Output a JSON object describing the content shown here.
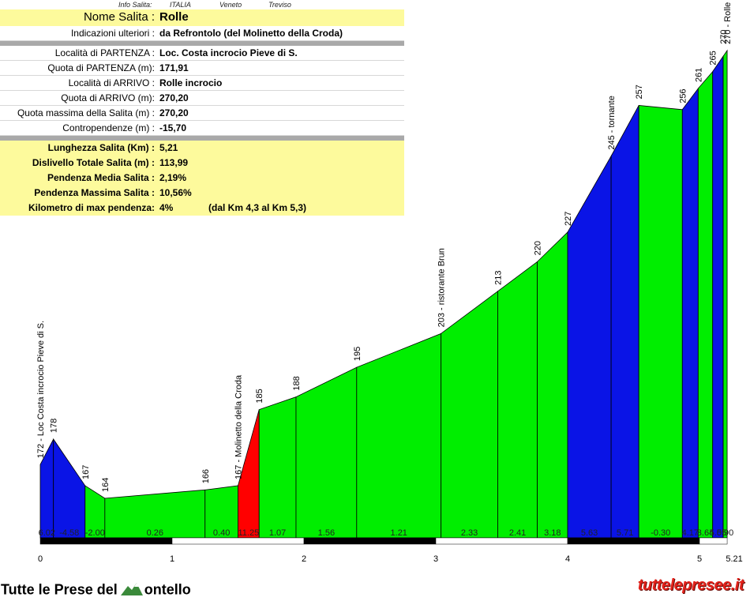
{
  "info": {
    "header": {
      "label": "Info Salita:",
      "country": "ITALIA",
      "region": "Veneto",
      "province": "Treviso"
    },
    "nome_label": "Nome Salita :",
    "nome_value": "Rolle",
    "indicazioni_label": "Indicazioni ulteriori :",
    "indicazioni_value": "da Refrontolo (del Molinetto della Croda)",
    "localita_partenza_label": "Località di PARTENZA :",
    "localita_partenza_value": "Loc. Costa incrocio Pieve di S.",
    "quota_partenza_label": "Quota di PARTENZA (m):",
    "quota_partenza_value": "171,91",
    "localita_arrivo_label": "Località di ARRIVO :",
    "localita_arrivo_value": "Rolle incrocio",
    "quota_arrivo_label": "Quota di ARRIVO (m):",
    "quota_arrivo_value": "270,20",
    "quota_max_label": "Quota massima della Salita (m) :",
    "quota_max_value": "270,20",
    "contropendenze_label": "Contropendenze (m) :",
    "contropendenze_value": "-15,70",
    "lunghezza_label": "Lunghezza Salita (Km) :",
    "lunghezza_value": "5,21",
    "dislivello_label": "Dislivello Totale Salita (m) :",
    "dislivello_value": "113,99",
    "pend_media_label": "Pendenza Media Salita :",
    "pend_media_value": "2,19%",
    "pend_max_label": "Pendenza Massima Salita :",
    "pend_max_value": "10,56%",
    "km_max_label": "Kilometro di max pendenza:",
    "km_max_value": "4%",
    "km_max_extra": "(dal Km 4,3 al Km 5,3)"
  },
  "footer": {
    "left_prefix": "Tutte le Prese del",
    "left_suffix": "ontello",
    "right": "tuttelepresee.it"
  },
  "colors": {
    "blue": "#0a14e6",
    "green": "#00ee00",
    "red": "#ff0000",
    "yellow": "#fdfa9c",
    "bar_black": "#000000"
  },
  "chart_data": {
    "type": "area",
    "title": "",
    "xlabel": "",
    "ylabel": "",
    "x_ticks": [
      "0",
      "1",
      "2",
      "3",
      "4",
      "5",
      "5.21"
    ],
    "xlim": [
      0,
      5.21
    ],
    "ylim": [
      150,
      275
    ],
    "profile": [
      {
        "x": 0.0,
        "y": 172
      },
      {
        "x": 0.1,
        "y": 178
      },
      {
        "x": 0.34,
        "y": 167
      },
      {
        "x": 0.49,
        "y": 164
      },
      {
        "x": 1.25,
        "y": 166
      },
      {
        "x": 1.5,
        "y": 167
      },
      {
        "x": 1.66,
        "y": 185
      },
      {
        "x": 1.94,
        "y": 188
      },
      {
        "x": 2.4,
        "y": 195
      },
      {
        "x": 3.04,
        "y": 203
      },
      {
        "x": 3.47,
        "y": 213
      },
      {
        "x": 3.77,
        "y": 220
      },
      {
        "x": 4.0,
        "y": 227
      },
      {
        "x": 4.33,
        "y": 245
      },
      {
        "x": 4.54,
        "y": 257
      },
      {
        "x": 4.87,
        "y": 256
      },
      {
        "x": 4.99,
        "y": 261
      },
      {
        "x": 5.1,
        "y": 265
      },
      {
        "x": 5.21,
        "y": 270
      }
    ],
    "segments": [
      {
        "from": 0.0,
        "to": 0.1,
        "grade": "6.02",
        "color": "blue"
      },
      {
        "from": 0.1,
        "to": 0.34,
        "grade": "-4.58",
        "color": "blue"
      },
      {
        "from": 0.34,
        "to": 0.49,
        "grade": "-2.00",
        "color": "green"
      },
      {
        "from": 0.49,
        "to": 1.25,
        "grade": "0.26",
        "color": "green"
      },
      {
        "from": 1.25,
        "to": 1.5,
        "grade": "0.40",
        "color": "green"
      },
      {
        "from": 1.5,
        "to": 1.66,
        "grade": "11.25",
        "color": "red"
      },
      {
        "from": 1.66,
        "to": 1.94,
        "grade": "1.07",
        "color": "green"
      },
      {
        "from": 1.94,
        "to": 2.4,
        "grade": "1.56",
        "color": "green"
      },
      {
        "from": 2.4,
        "to": 3.04,
        "grade": "1.21",
        "color": "green"
      },
      {
        "from": 3.04,
        "to": 3.47,
        "grade": "2.33",
        "color": "green"
      },
      {
        "from": 3.47,
        "to": 3.77,
        "grade": "2.41",
        "color": "green"
      },
      {
        "from": 3.77,
        "to": 4.0,
        "grade": "3.18",
        "color": "green"
      },
      {
        "from": 4.0,
        "to": 4.33,
        "grade": "5.63",
        "color": "blue"
      },
      {
        "from": 4.33,
        "to": 4.54,
        "grade": "5.71",
        "color": "blue"
      },
      {
        "from": 4.54,
        "to": 4.87,
        "grade": "-0.30",
        "color": "green"
      },
      {
        "from": 4.87,
        "to": 4.99,
        "grade": "4.17",
        "color": "blue"
      },
      {
        "from": 4.99,
        "to": 5.1,
        "grade": "3.64",
        "color": "green"
      },
      {
        "from": 5.1,
        "to": 5.18,
        "grade": "5.55",
        "color": "blue"
      },
      {
        "from": 5.18,
        "to": 5.21,
        "grade": "0.90",
        "color": "green"
      }
    ],
    "point_labels": [
      {
        "x": 0.0,
        "y": 172,
        "text": "172 - Loc Costa incrocio Pieve di S."
      },
      {
        "x": 0.1,
        "y": 178,
        "text": "178"
      },
      {
        "x": 0.34,
        "y": 167,
        "text": "167"
      },
      {
        "x": 0.49,
        "y": 164,
        "text": "164"
      },
      {
        "x": 1.25,
        "y": 166,
        "text": "166"
      },
      {
        "x": 1.5,
        "y": 167,
        "text": "167 - Molinetto della Croda"
      },
      {
        "x": 1.66,
        "y": 185,
        "text": "185"
      },
      {
        "x": 1.94,
        "y": 188,
        "text": "188"
      },
      {
        "x": 2.4,
        "y": 195,
        "text": "195"
      },
      {
        "x": 3.04,
        "y": 203,
        "text": "203 - ristorante Brun"
      },
      {
        "x": 3.47,
        "y": 213,
        "text": "213"
      },
      {
        "x": 3.77,
        "y": 220,
        "text": "220"
      },
      {
        "x": 4.0,
        "y": 227,
        "text": "227"
      },
      {
        "x": 4.33,
        "y": 245,
        "text": "245 - tornante"
      },
      {
        "x": 4.54,
        "y": 257,
        "text": "257"
      },
      {
        "x": 4.87,
        "y": 256,
        "text": "256"
      },
      {
        "x": 4.99,
        "y": 261,
        "text": "261"
      },
      {
        "x": 5.1,
        "y": 265,
        "text": "265"
      },
      {
        "x": 5.18,
        "y": 270,
        "text": "270"
      },
      {
        "x": 5.21,
        "y": 270,
        "text": "270 - Rolle incrocio"
      }
    ]
  }
}
